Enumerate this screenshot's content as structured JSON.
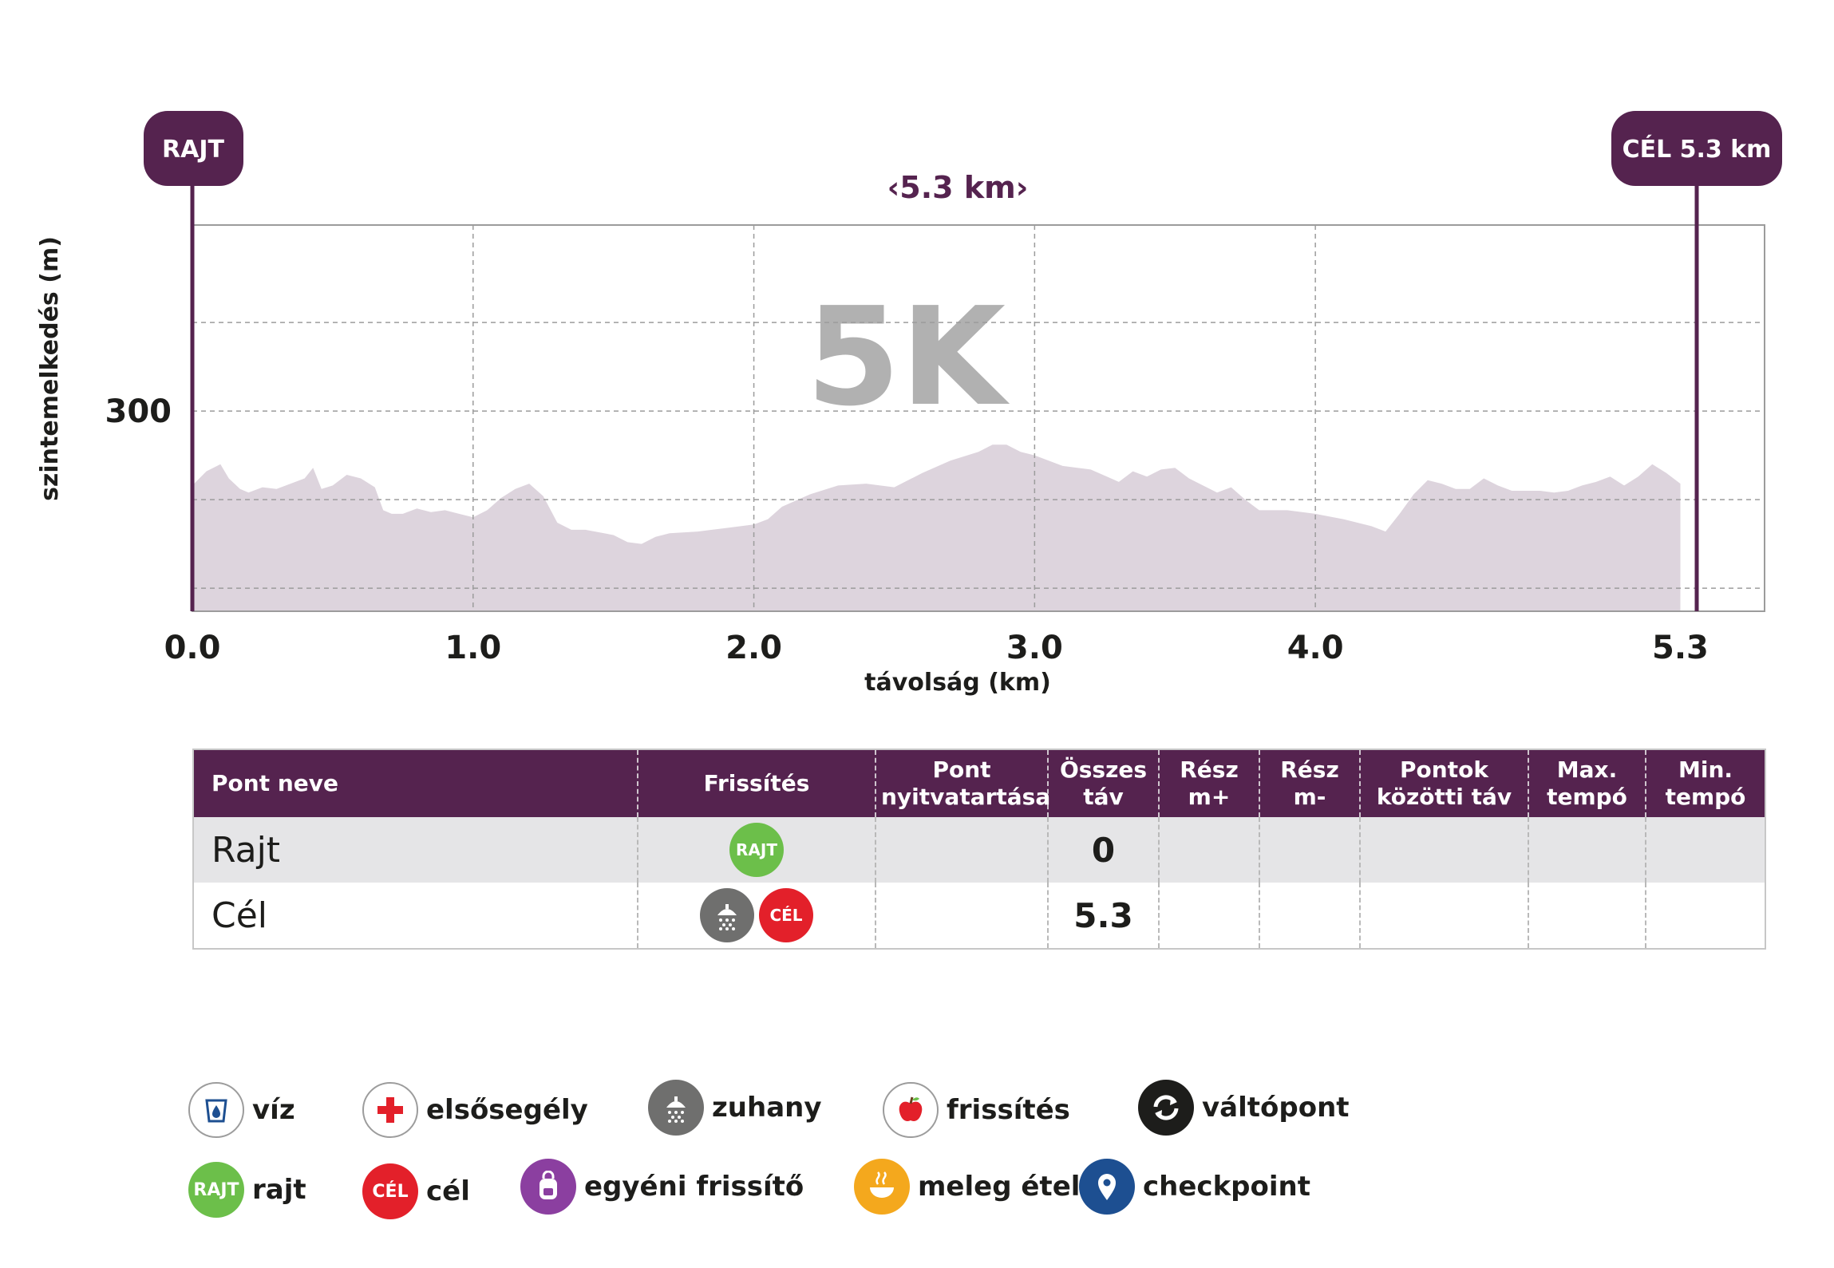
{
  "colors": {
    "brand": "#55234f",
    "profile_fill": "#ddd4dd",
    "grid": "#9c9c9c",
    "rajt": "#6cbf4a",
    "cel": "#e3202a",
    "shower": "#6f6f6e",
    "personal": "#8b3fa0",
    "hot_food": "#f4a81d",
    "checkpoint": "#1d4f91",
    "exchange": "#1d1d1b"
  },
  "start_flag": "RAJT",
  "finish_flag": "CÉL 5.3 km",
  "distance_label": "‹5.3 km›",
  "race_name": "5K",
  "chart_data": {
    "type": "area",
    "xlabel": "távolság (km)",
    "ylabel": "szintemelkedés (m)",
    "xlim": [
      0,
      5.6
    ],
    "ylim": [
      187,
      405
    ],
    "x_ticks": [
      {
        "value": 0.0,
        "label": "0.0"
      },
      {
        "value": 1.0,
        "label": "1.0"
      },
      {
        "value": 2.0,
        "label": "2.0"
      },
      {
        "value": 3.0,
        "label": "3.0"
      },
      {
        "value": 4.0,
        "label": "4.0"
      },
      {
        "value": 5.3,
        "label": "5.3"
      }
    ],
    "x_gridlines": [
      1.0,
      2.0,
      3.0,
      4.0
    ],
    "y_ticks": [
      {
        "value": 300,
        "label": "300"
      }
    ],
    "y_gridlines": [
      350,
      300,
      250,
      200
    ],
    "grid": true,
    "series": [
      {
        "x": [
          0.0,
          0.05,
          0.1,
          0.13,
          0.17,
          0.2,
          0.25,
          0.3,
          0.35,
          0.4,
          0.43,
          0.46,
          0.5,
          0.55,
          0.6,
          0.65,
          0.68,
          0.71,
          0.75,
          0.8,
          0.85,
          0.9,
          0.95,
          1.0,
          1.05,
          1.1,
          1.15,
          1.2,
          1.25,
          1.3,
          1.35,
          1.4,
          1.5,
          1.55,
          1.6,
          1.65,
          1.7,
          1.8,
          1.9,
          2.0,
          2.05,
          2.1,
          2.2,
          2.3,
          2.4,
          2.5,
          2.6,
          2.7,
          2.8,
          2.85,
          2.9,
          2.95,
          3.0,
          3.1,
          3.2,
          3.3,
          3.35,
          3.4,
          3.45,
          3.5,
          3.55,
          3.6,
          3.65,
          3.7,
          3.75,
          3.8,
          3.9,
          4.0,
          4.1,
          4.2,
          4.25,
          4.3,
          4.35,
          4.4,
          4.45,
          4.5,
          4.55,
          4.6,
          4.65,
          4.7,
          4.75,
          4.8,
          4.85,
          4.9,
          4.95,
          5.0,
          5.05,
          5.1,
          5.15,
          5.2,
          5.25,
          5.3
        ],
        "values": [
          258,
          266,
          270,
          262,
          256,
          254,
          257,
          256,
          259,
          262,
          268,
          256,
          258,
          264,
          262,
          257,
          244,
          242,
          242,
          245,
          243,
          244,
          242,
          240,
          244,
          251,
          256,
          259,
          252,
          237,
          233,
          233,
          230,
          226,
          225,
          229,
          231,
          232,
          234,
          236,
          239,
          246,
          253,
          258,
          259,
          257,
          265,
          272,
          277,
          281,
          281,
          277,
          275,
          269,
          267,
          260,
          266,
          263,
          267,
          268,
          262,
          258,
          254,
          257,
          250,
          244,
          244,
          242,
          239,
          235,
          232,
          242,
          253,
          261,
          259,
          256,
          256,
          262,
          258,
          255,
          255,
          255,
          254,
          255,
          258,
          260,
          263,
          258,
          263,
          270,
          265,
          259
        ]
      }
    ]
  },
  "table": {
    "headers": [
      "Pont neve",
      "Frissítés",
      "Pont\nnyitvatartása",
      "Összes\ntáv",
      "Rész\nm+",
      "Rész\nm-",
      "Pontok\nközötti táv",
      "Max.\ntempó",
      "Min.\ntempó"
    ],
    "rows": [
      {
        "name": "Rajt",
        "badges": [
          "RAJT"
        ],
        "opening": "",
        "total": "0",
        "m_plus": "",
        "m_minus": "",
        "between": "",
        "max_pace": "",
        "min_pace": ""
      },
      {
        "name": "Cél",
        "badges": [
          "shower-icon",
          "CÉL"
        ],
        "opening": "",
        "total": "5.3",
        "m_plus": "",
        "m_minus": "",
        "between": "",
        "max_pace": "",
        "min_pace": ""
      }
    ]
  },
  "legend": {
    "water": "víz",
    "first_aid": "elsősegély",
    "shower": "zuhany",
    "refreshment": "frissítés",
    "exchange": "váltópont",
    "start": "rajt",
    "start_badge": "RAJT",
    "finish": "cél",
    "finish_badge": "CÉL",
    "personal": "egyéni frissítő",
    "hot_food": "meleg étel",
    "checkpoint": "checkpoint"
  }
}
